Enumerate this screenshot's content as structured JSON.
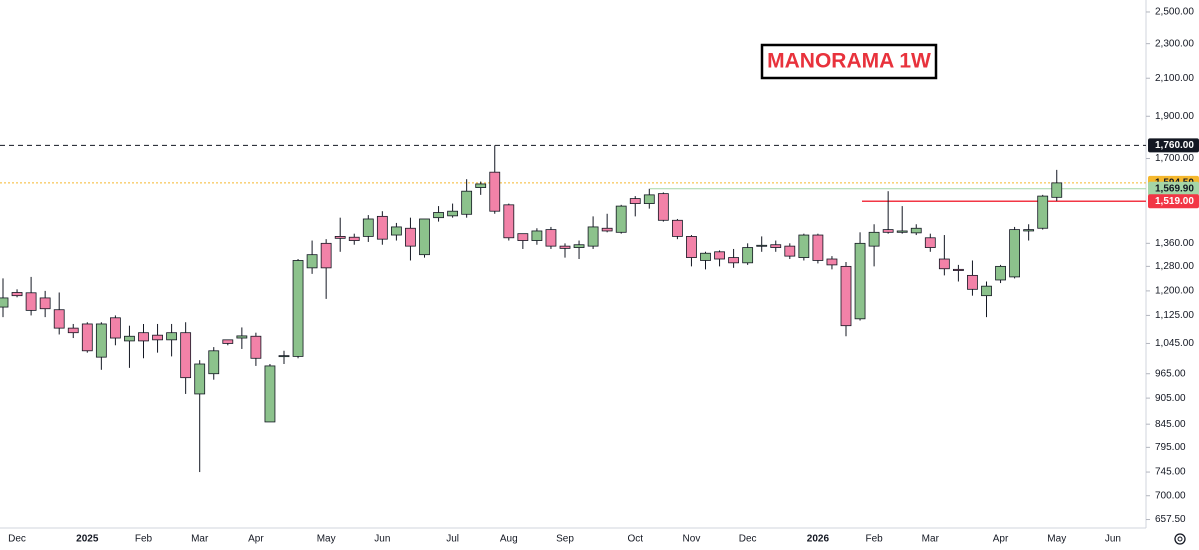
{
  "chart_data": {
    "type": "candlestick",
    "title": "MANORAMA 1W",
    "log_scale": true,
    "up_color": "#8cc28c",
    "down_color": "#f282a8",
    "categories": [
      null,
      "Dec",
      null,
      null,
      null,
      null,
      "2025",
      null,
      null,
      null,
      "Feb",
      null,
      null,
      null,
      "Mar",
      null,
      null,
      null,
      "Apr",
      null,
      null,
      null,
      null,
      "May",
      null,
      null,
      null,
      "Jun",
      null,
      null,
      null,
      null,
      "Jul",
      null,
      null,
      null,
      "Aug",
      null,
      null,
      null,
      "Sep",
      null,
      null,
      null,
      null,
      "Oct",
      null,
      null,
      null,
      "Nov",
      null,
      null,
      null,
      "Dec",
      null,
      null,
      null,
      null,
      "2026",
      null,
      null,
      null,
      "Feb",
      null,
      null,
      null,
      "Mar",
      null,
      null,
      null,
      null,
      "Apr",
      null,
      null,
      null,
      "May",
      null,
      null,
      null,
      "Jun"
    ],
    "open": [
      1150,
      1195,
      1194,
      1178,
      1142,
      1088,
      1100,
      1008,
      1118,
      1052,
      1075,
      1068,
      1055,
      1075,
      915,
      965,
      1055,
      1060,
      1065,
      850,
      1010,
      1010,
      1275,
      1360,
      1385,
      1382,
      1385,
      1460,
      1390,
      1415,
      1320,
      1455,
      1462,
      1468,
      1575,
      1640,
      1505,
      1395,
      1370,
      1410,
      1350,
      1345,
      1350,
      1415,
      1400,
      1530,
      1510,
      1550,
      1445,
      1385,
      1300,
      1330,
      1310,
      1292,
      1350,
      1355,
      1350,
      1310,
      1390,
      1305,
      1280,
      1115,
      1350,
      1410,
      1400,
      1398,
      1380,
      1305,
      1270,
      1250,
      1185,
      1235,
      1245,
      1405,
      1415,
      1535,
      null,
      null,
      null,
      null
    ],
    "high": [
      1240,
      1205,
      1245,
      1200,
      1195,
      1100,
      1105,
      1105,
      1125,
      1095,
      1100,
      1100,
      1100,
      1105,
      1000,
      1035,
      1055,
      1090,
      1075,
      990,
      1025,
      1305,
      1370,
      1375,
      1455,
      1395,
      1465,
      1480,
      1435,
      1455,
      1450,
      1500,
      1510,
      1610,
      1600,
      1760,
      1510,
      1395,
      1415,
      1420,
      1360,
      1370,
      1460,
      1470,
      1505,
      1540,
      1570,
      1555,
      1450,
      1390,
      1330,
      1335,
      1340,
      1360,
      1385,
      1370,
      1360,
      1395,
      1395,
      1315,
      1295,
      1400,
      1430,
      1560,
      1500,
      1430,
      1395,
      1390,
      1285,
      1300,
      1230,
      1285,
      1420,
      1430,
      1545,
      1650,
      null,
      null,
      null,
      null
    ],
    "low": [
      1120,
      1180,
      1125,
      1120,
      1070,
      1060,
      1020,
      975,
      1040,
      980,
      1005,
      1020,
      1010,
      915,
      745,
      950,
      1040,
      1030,
      985,
      850,
      990,
      1005,
      1255,
      1175,
      1330,
      1355,
      1365,
      1355,
      1370,
      1300,
      1310,
      1440,
      1455,
      1455,
      1545,
      1470,
      1370,
      1340,
      1355,
      1340,
      1310,
      1305,
      1340,
      1400,
      1395,
      1460,
      1490,
      1440,
      1375,
      1280,
      1270,
      1280,
      1275,
      1285,
      1330,
      1330,
      1305,
      1300,
      1290,
      1270,
      1065,
      1110,
      1280,
      1395,
      1395,
      1390,
      1330,
      1250,
      1230,
      1185,
      1120,
      1225,
      1240,
      1370,
      1410,
      1520,
      null,
      null,
      null,
      null
    ],
    "close": [
      1178,
      1185,
      1140,
      1145,
      1088,
      1075,
      1025,
      1100,
      1060,
      1065,
      1052,
      1055,
      1075,
      955,
      990,
      1025,
      1045,
      1066,
      1005,
      985,
      1012,
      1300,
      1320,
      1275,
      1378,
      1370,
      1450,
      1375,
      1420,
      1350,
      1450,
      1475,
      1480,
      1560,
      1590,
      1480,
      1380,
      1370,
      1405,
      1350,
      1342,
      1355,
      1420,
      1405,
      1500,
      1510,
      1545,
      1445,
      1385,
      1310,
      1325,
      1305,
      1292,
      1345,
      1353,
      1345,
      1315,
      1390,
      1300,
      1285,
      1095,
      1360,
      1400,
      1400,
      1405,
      1415,
      1345,
      1272,
      1266,
      1205,
      1215,
      1280,
      1410,
      1410,
      1540,
      1594.5,
      null,
      null,
      null,
      null
    ],
    "ylim": [
      643,
      2580
    ],
    "yticks": [
      {
        "value": 657.5,
        "label": "657.50"
      },
      {
        "value": 700,
        "label": "700.00"
      },
      {
        "value": 745,
        "label": "745.00"
      },
      {
        "value": 795,
        "label": "795.00"
      },
      {
        "value": 845,
        "label": "845.00"
      },
      {
        "value": 905,
        "label": "905.00"
      },
      {
        "value": 965,
        "label": "965.00"
      },
      {
        "value": 1045,
        "label": "1,045.00"
      },
      {
        "value": 1125,
        "label": "1,125.00"
      },
      {
        "value": 1200,
        "label": "1,200.00"
      },
      {
        "value": 1280,
        "label": "1,280.00"
      },
      {
        "value": 1360,
        "label": "1,360.00"
      },
      {
        "value": 1700,
        "label": "1,700.00"
      },
      {
        "value": 1900,
        "label": "1,900.00"
      },
      {
        "value": 2100,
        "label": "2,100.00"
      },
      {
        "value": 2300,
        "label": "2,300.00"
      },
      {
        "value": 2500,
        "label": "2,500.00"
      }
    ],
    "price_lines": [
      {
        "value": 1760,
        "label": "1,760.00",
        "color": "#131722",
        "text_color": "#ffffff",
        "style": "dashed"
      },
      {
        "value": 1594.5,
        "label": "1,594.50",
        "color": "#f5b82e",
        "text_color": "#131722",
        "style": "dotted"
      },
      {
        "value": 1569.9,
        "label": "1,569.90",
        "color": "#a5d6a7",
        "text_color": "#131722",
        "style": "solid"
      },
      {
        "value": 1519,
        "label": "1,519.00",
        "color": "#f23645",
        "text_color": "#ffffff",
        "style": "solid"
      }
    ]
  }
}
